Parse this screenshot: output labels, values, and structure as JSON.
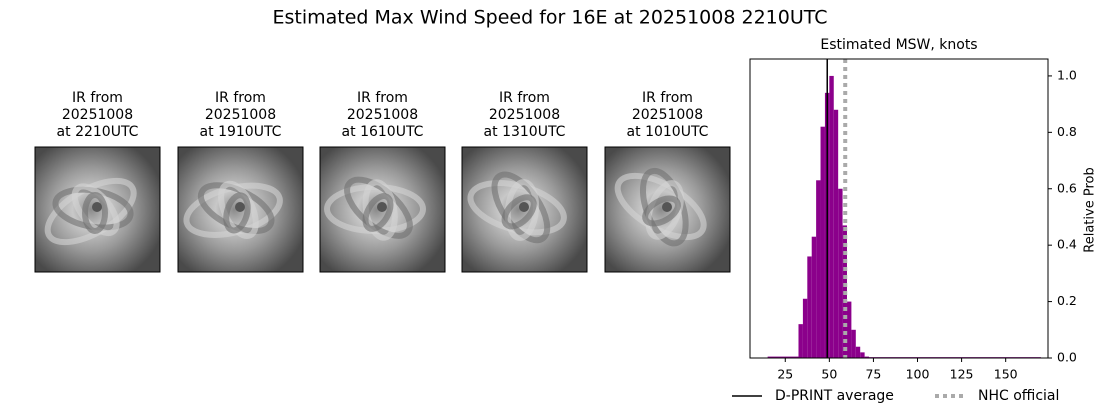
{
  "title": "Estimated Max Wind Speed for 16E at 20251008 2210UTC",
  "images": [
    {
      "lines": [
        "IR from",
        "20251008",
        "at 2210UTC"
      ]
    },
    {
      "lines": [
        "IR from",
        "20251008",
        "at 1910UTC"
      ]
    },
    {
      "lines": [
        "IR from",
        "20251008",
        "at 1610UTC"
      ]
    },
    {
      "lines": [
        "IR from",
        "20251008",
        "at 1310UTC"
      ]
    },
    {
      "lines": [
        "IR from",
        "20251008",
        "at 1010UTC"
      ]
    }
  ],
  "chart_data": {
    "type": "histogram",
    "title": "Estimated MSW, knots",
    "y_label": "Relative Prob",
    "color": "#8b008b",
    "bins": [
      15,
      32.5,
      35,
      37.5,
      40,
      42.5,
      45,
      47.5,
      50,
      52.5,
      55,
      57.5,
      60,
      62.5,
      65,
      67.5,
      70,
      72.5,
      170
    ],
    "counts": [
      0.005,
      0.12,
      0.21,
      0.36,
      0.43,
      0.63,
      0.82,
      0.94,
      1.0,
      0.88,
      0.6,
      0.47,
      0.2,
      0.1,
      0.04,
      0.02,
      0.005,
      0.003
    ],
    "xlim": [
      5,
      174
    ],
    "ylim": [
      0,
      1.06
    ],
    "xticks": [
      25,
      50,
      75,
      100,
      125,
      150
    ],
    "yticks": [
      {
        "value": 0,
        "label": "0.0"
      },
      0.2,
      0.4,
      0.6,
      0.8,
      {
        "value": 1,
        "label": "1.0"
      }
    ],
    "lines": [
      {
        "name": "D-PRINT average",
        "value": 48.8,
        "color": "#000000",
        "style": "solid"
      },
      {
        "name": "NHC official",
        "value": 59,
        "color": "#aaaaaa",
        "style": "dotted"
      }
    ]
  }
}
